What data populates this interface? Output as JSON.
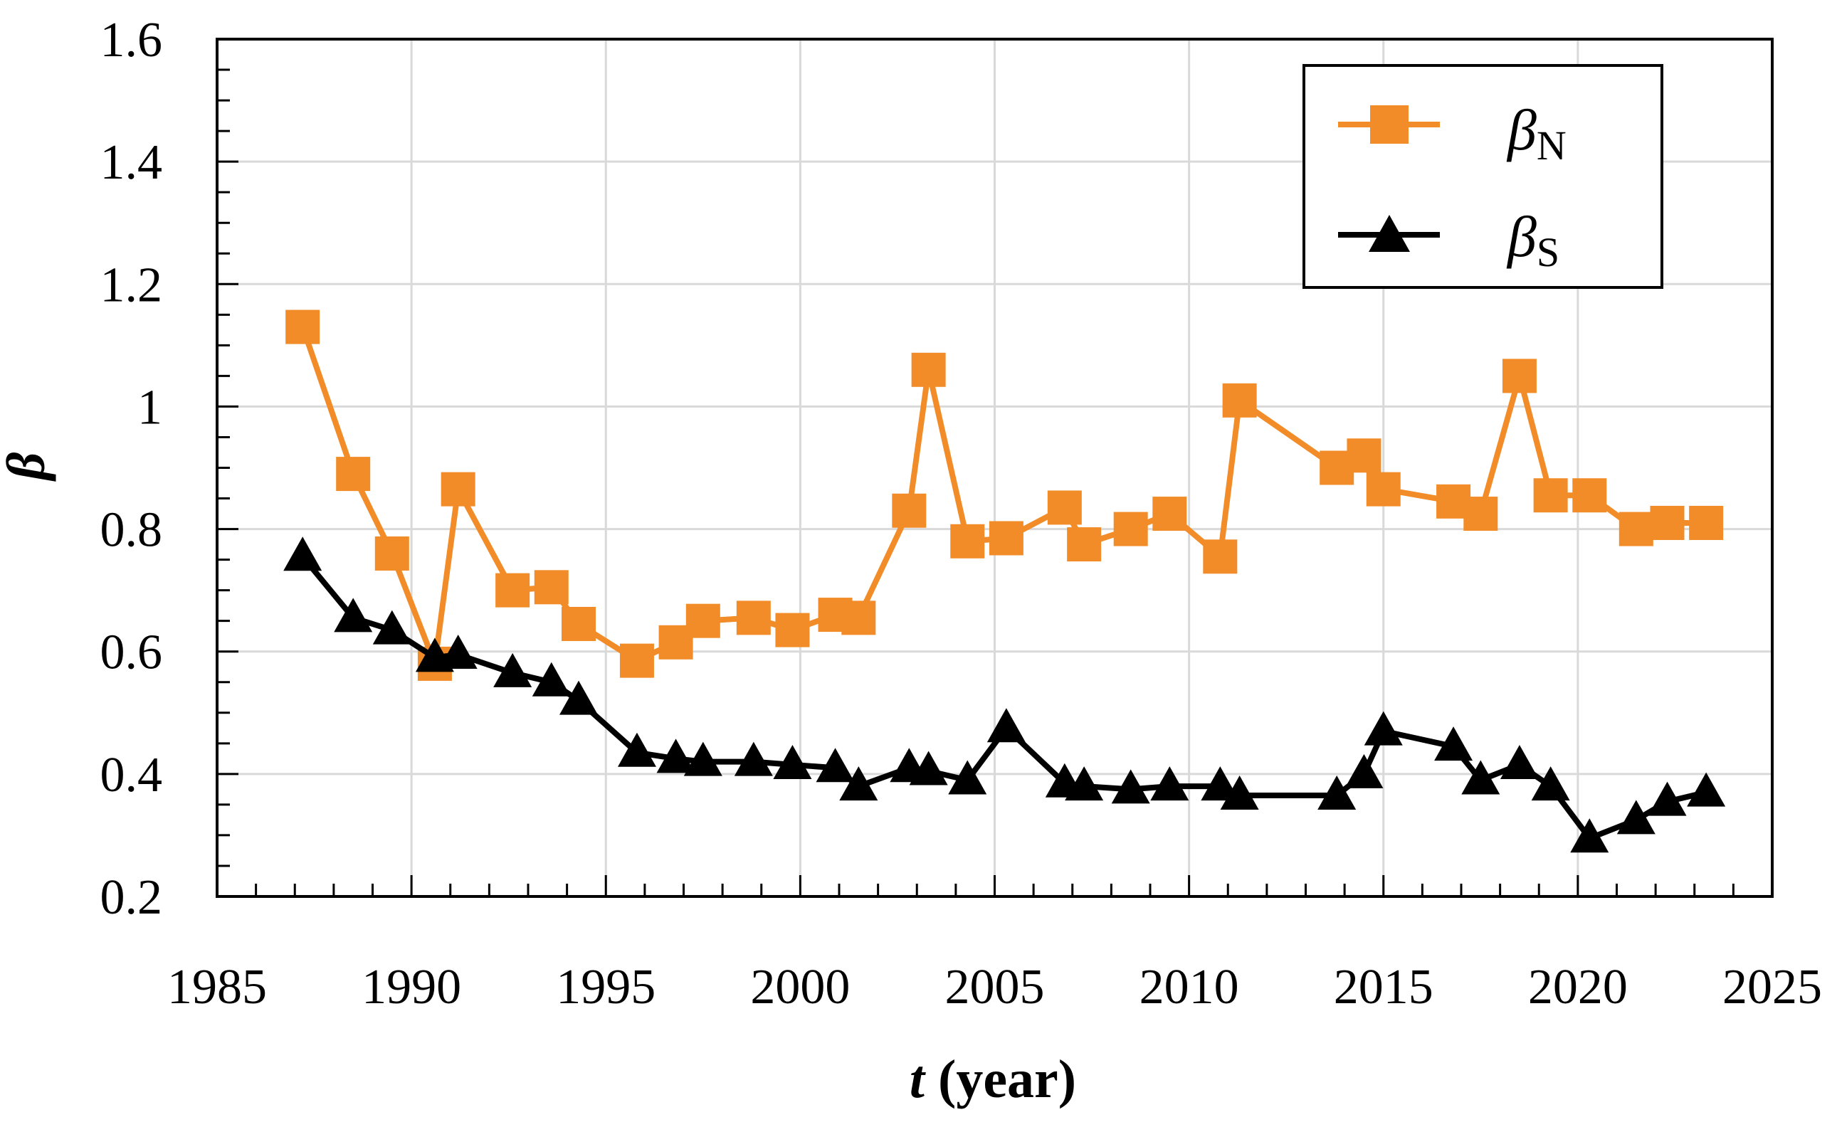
{
  "chart_data": {
    "type": "line",
    "title": "",
    "xlabel": "t",
    "xlabel_suffix": " (year)",
    "ylabel": "β",
    "xlim": [
      1985,
      2025
    ],
    "ylim": [
      0.2,
      1.6
    ],
    "x_ticks": [
      1985,
      1990,
      1995,
      2000,
      2005,
      2010,
      2015,
      2020,
      2025
    ],
    "y_ticks": [
      0.2,
      0.4,
      0.6,
      0.8,
      1,
      1.2,
      1.4,
      1.6
    ],
    "y_tick_labels": [
      "0.2",
      "0.4",
      "0.6",
      "0.8",
      "1",
      "1.2",
      "1.4",
      "1.6"
    ],
    "grid": true,
    "legend_position": "top-right",
    "series": [
      {
        "name": "βN",
        "legend_main": "β",
        "legend_sub": "N",
        "color": "#F28C28",
        "marker": "square",
        "x": [
          1987.2,
          1988.5,
          1989.5,
          1990.6,
          1991.2,
          1992.6,
          1993.6,
          1994.3,
          1995.8,
          1996.8,
          1997.5,
          1998.8,
          1999.8,
          2000.9,
          2001.5,
          2002.8,
          2003.3,
          2004.3,
          2005.3,
          2006.8,
          2007.3,
          2008.5,
          2009.5,
          2010.8,
          2011.3,
          2013.8,
          2014.5,
          2015.0,
          2016.8,
          2017.5,
          2018.5,
          2019.3,
          2020.3,
          2021.5,
          2022.3,
          2023.3
        ],
        "values": [
          1.13,
          0.89,
          0.76,
          0.58,
          0.865,
          0.7,
          0.705,
          0.645,
          0.585,
          0.615,
          0.65,
          0.655,
          0.635,
          0.66,
          0.655,
          0.83,
          1.06,
          0.78,
          0.785,
          0.835,
          0.775,
          0.8,
          0.825,
          0.755,
          1.01,
          0.9,
          0.92,
          0.865,
          0.845,
          0.825,
          1.05,
          0.855,
          0.855,
          0.8,
          0.81,
          0.81
        ]
      },
      {
        "name": "βS",
        "legend_main": "β",
        "legend_sub": "S",
        "color": "#000000",
        "marker": "triangle",
        "x": [
          1987.2,
          1988.5,
          1989.5,
          1990.6,
          1991.2,
          1992.6,
          1993.6,
          1994.3,
          1995.8,
          1996.8,
          1997.5,
          1998.8,
          1999.8,
          2000.9,
          2001.5,
          2002.8,
          2003.3,
          2004.3,
          2005.3,
          2006.8,
          2007.3,
          2008.5,
          2009.5,
          2010.8,
          2011.3,
          2013.8,
          2014.5,
          2015.0,
          2016.8,
          2017.5,
          2018.5,
          2019.3,
          2020.3,
          2021.5,
          2022.3,
          2023.3
        ],
        "values": [
          0.755,
          0.655,
          0.635,
          0.59,
          0.595,
          0.565,
          0.55,
          0.52,
          0.435,
          0.425,
          0.42,
          0.42,
          0.415,
          0.41,
          0.38,
          0.41,
          0.405,
          0.39,
          0.475,
          0.385,
          0.38,
          0.375,
          0.38,
          0.38,
          0.365,
          0.365,
          0.4,
          0.47,
          0.445,
          0.39,
          0.415,
          0.38,
          0.295,
          0.325,
          0.355,
          0.37
        ]
      }
    ]
  }
}
